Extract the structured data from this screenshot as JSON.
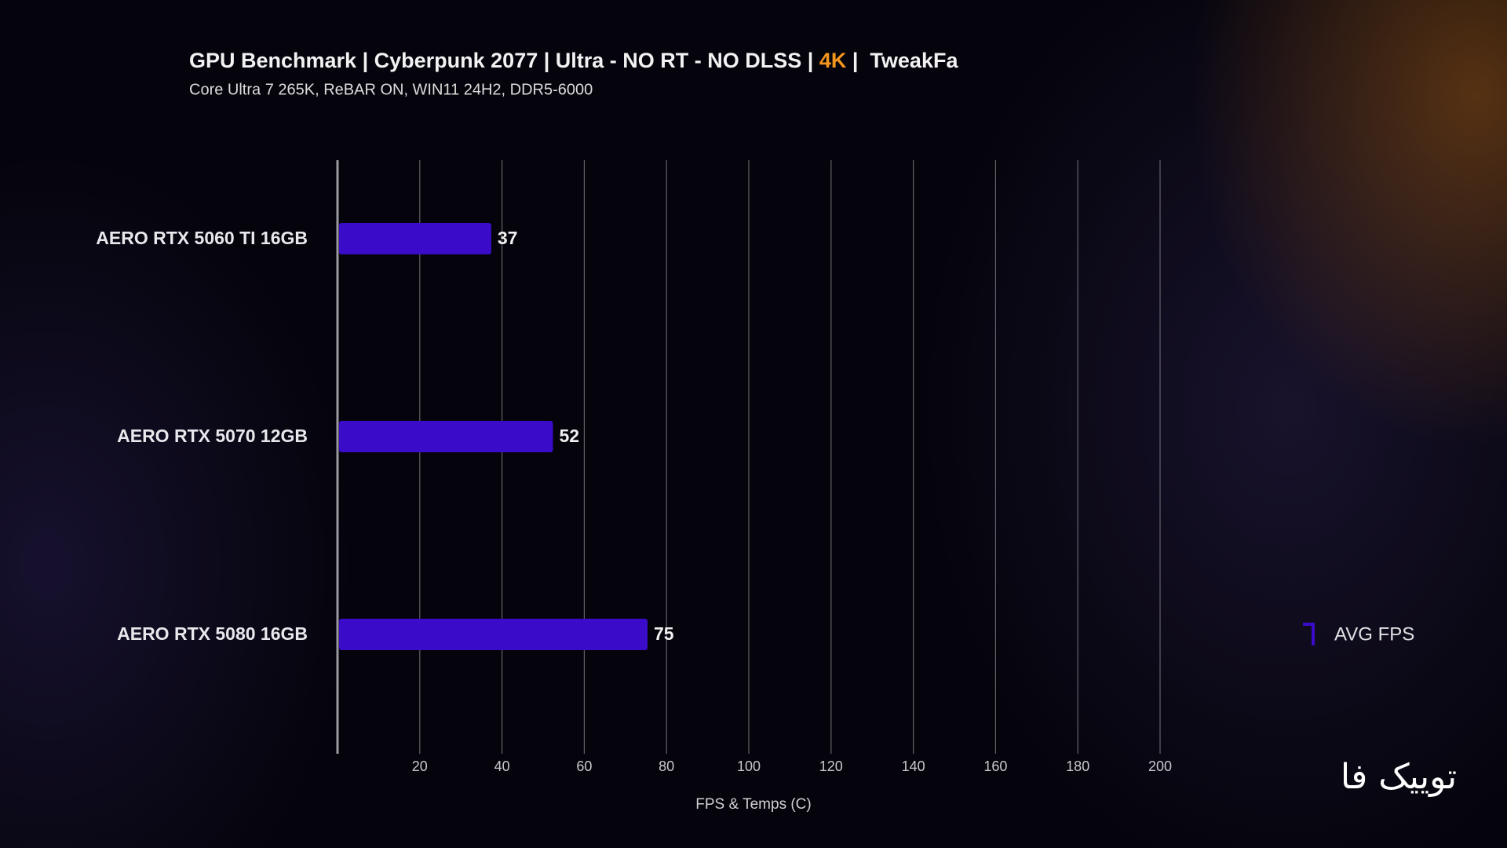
{
  "chart_data": {
    "type": "bar",
    "orientation": "horizontal",
    "title_parts": [
      "GPU Benchmark | Cyberpunk 2077 | Ultra - NO RT - NO DLSS | ",
      "4K",
      " |  TweakFa"
    ],
    "subtitle": "Core Ultra 7 265K, ReBAR ON, WIN11 24H2, DDR5-6000",
    "x_label": "FPS & Temps (C)",
    "categories": [
      "AERO RTX 5060 TI 16GB",
      "AERO RTX 5070 12GB",
      "AERO RTX 5080 16GB"
    ],
    "series": [
      {
        "name": "AVG FPS",
        "color": "#3a0bc8",
        "values": [
          37,
          52,
          75
        ]
      }
    ],
    "xlim": [
      0,
      200
    ],
    "xticks": [
      20,
      40,
      60,
      80,
      100,
      120,
      140,
      160,
      180,
      200
    ],
    "grid": true,
    "legend_position": "right",
    "logo": "توییک فا"
  }
}
